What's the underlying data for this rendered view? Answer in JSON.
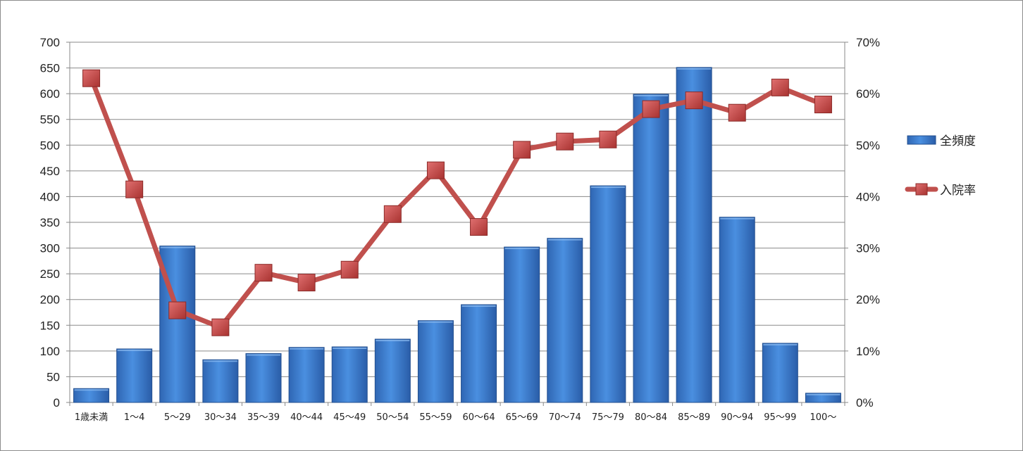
{
  "chart_data": {
    "type": "bar+line",
    "title": "",
    "categories": [
      "1歳未満",
      "1～4",
      "5～29",
      "30～34",
      "35～39",
      "40～44",
      "45～49",
      "50～54",
      "55～59",
      "60～64",
      "65～69",
      "70～74",
      "75～79",
      "80～84",
      "85～89",
      "90～94",
      "95～99",
      "100～"
    ],
    "series": [
      {
        "name": "全頻度",
        "type": "bar",
        "axis": "left",
        "color": "#3a7bd5",
        "values": [
          27,
          104,
          304,
          83,
          95,
          107,
          108,
          123,
          159,
          190,
          302,
          319,
          421,
          599,
          651,
          360,
          115,
          18
        ]
      },
      {
        "name": "入院率",
        "type": "line",
        "axis": "right",
        "color": "#c0504d",
        "values": [
          0.63,
          0.414,
          0.179,
          0.146,
          0.252,
          0.233,
          0.258,
          0.366,
          0.451,
          0.341,
          0.491,
          0.507,
          0.511,
          0.57,
          0.587,
          0.563,
          0.612,
          0.579
        ]
      }
    ],
    "y_left": {
      "min": 0,
      "max": 700,
      "step": 50,
      "tick_labels": [
        "0",
        "50",
        "100",
        "150",
        "200",
        "250",
        "300",
        "350",
        "400",
        "450",
        "500",
        "550",
        "600",
        "650",
        "700"
      ]
    },
    "y_right": {
      "min": 0,
      "max": 0.7,
      "step": 0.1,
      "tick_labels": [
        "0%",
        "10%",
        "20%",
        "30%",
        "40%",
        "50%",
        "60%",
        "70%"
      ]
    },
    "grid": true,
    "legend_position": "right"
  }
}
